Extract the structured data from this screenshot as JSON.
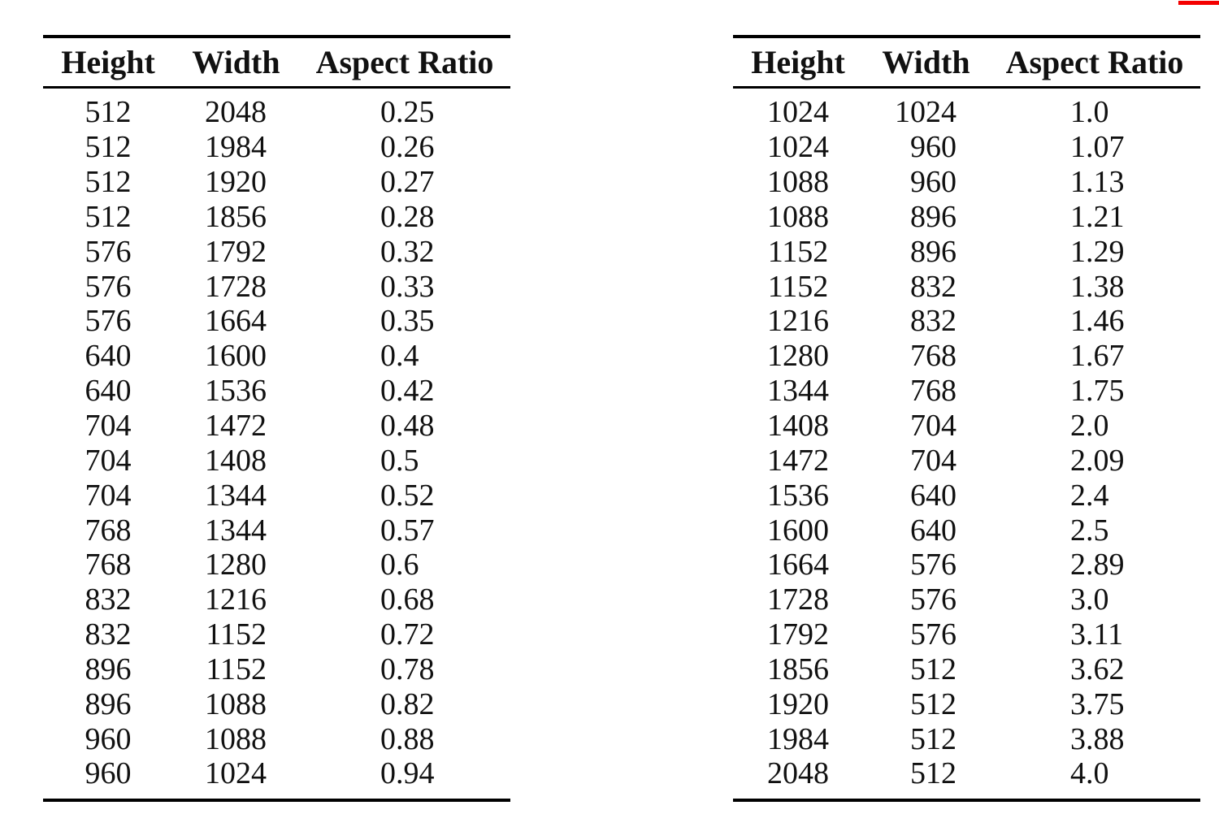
{
  "page": {
    "background": "#ffffff"
  },
  "annotation": {
    "red_marker_color": "#f40000"
  },
  "tables": {
    "columns": [
      "Height",
      "Width",
      "Aspect Ratio"
    ],
    "left": {
      "rows": [
        [
          "512",
          "2048",
          "0.25"
        ],
        [
          "512",
          "1984",
          "0.26"
        ],
        [
          "512",
          "1920",
          "0.27"
        ],
        [
          "512",
          "1856",
          "0.28"
        ],
        [
          "576",
          "1792",
          "0.32"
        ],
        [
          "576",
          "1728",
          "0.33"
        ],
        [
          "576",
          "1664",
          "0.35"
        ],
        [
          "640",
          "1600",
          "0.4"
        ],
        [
          "640",
          "1536",
          "0.42"
        ],
        [
          "704",
          "1472",
          "0.48"
        ],
        [
          "704",
          "1408",
          "0.5"
        ],
        [
          "704",
          "1344",
          "0.52"
        ],
        [
          "768",
          "1344",
          "0.57"
        ],
        [
          "768",
          "1280",
          "0.6"
        ],
        [
          "832",
          "1216",
          "0.68"
        ],
        [
          "832",
          "1152",
          "0.72"
        ],
        [
          "896",
          "1152",
          "0.78"
        ],
        [
          "896",
          "1088",
          "0.82"
        ],
        [
          "960",
          "1088",
          "0.88"
        ],
        [
          "960",
          "1024",
          "0.94"
        ]
      ]
    },
    "right": {
      "rows": [
        [
          "1024",
          "1024",
          "1.0"
        ],
        [
          "1024",
          "960",
          "1.07"
        ],
        [
          "1088",
          "960",
          "1.13"
        ],
        [
          "1088",
          "896",
          "1.21"
        ],
        [
          "1152",
          "896",
          "1.29"
        ],
        [
          "1152",
          "832",
          "1.38"
        ],
        [
          "1216",
          "832",
          "1.46"
        ],
        [
          "1280",
          "768",
          "1.67"
        ],
        [
          "1344",
          "768",
          "1.75"
        ],
        [
          "1408",
          "704",
          "2.0"
        ],
        [
          "1472",
          "704",
          "2.09"
        ],
        [
          "1536",
          "640",
          "2.4"
        ],
        [
          "1600",
          "640",
          "2.5"
        ],
        [
          "1664",
          "576",
          "2.89"
        ],
        [
          "1728",
          "576",
          "3.0"
        ],
        [
          "1792",
          "576",
          "3.11"
        ],
        [
          "1856",
          "512",
          "3.62"
        ],
        [
          "1920",
          "512",
          "3.75"
        ],
        [
          "1984",
          "512",
          "3.88"
        ],
        [
          "2048",
          "512",
          "4.0"
        ]
      ]
    }
  }
}
